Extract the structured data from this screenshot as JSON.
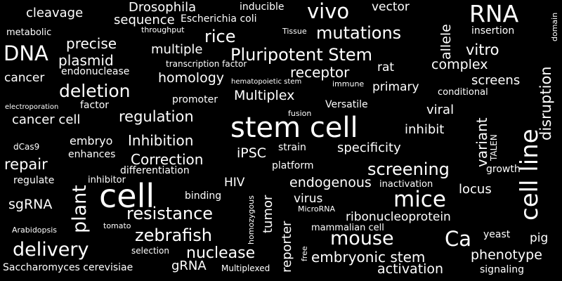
{
  "word_cloud": {
    "background_color": "#000000",
    "text_color": "#ffffff",
    "words": [
      "stem cell",
      "cell",
      "cell line",
      "mice",
      "RNA",
      "Pluripotent Stem",
      "vivo",
      "DNA",
      "mouse",
      "delivery",
      "Ca",
      "deletion",
      "mutations",
      "zebrafish",
      "resistance",
      "screening",
      "plant",
      "disruption",
      "rice",
      "nuclease",
      "regulation",
      "embryonic stem",
      "variant",
      "vitro",
      "receptor",
      "Correction",
      "Inhibition",
      "Multiplex",
      "homology",
      "precise",
      "plasmid",
      "multiple",
      "complex",
      "activation",
      "phenotype",
      "endogenous",
      "allele",
      "cleavage",
      "sequence",
      "Drosophila",
      "specificity",
      "repair",
      "cancer cell",
      "tumor",
      "reporter",
      "cancer",
      "primary",
      "screens",
      "viral",
      "inhibit",
      "iPSC",
      "locus",
      "sgRNA",
      "gRNA",
      "pig",
      "Saccharomyces cerevisiae",
      "ribonucleoprotein",
      "virus",
      "HIV",
      "rat",
      "vector",
      "embryo",
      "mammalian cell",
      "signaling",
      "yeast",
      "growth",
      "insertion",
      "Escherichia coli",
      "inducible",
      "endonuclease",
      "metabolic",
      "transcription factor",
      "promoter",
      "conditional",
      "factor",
      "Versatile",
      "platform",
      "strain",
      "differentiation",
      "enhances",
      "regulate",
      "inhibitor",
      "binding",
      "inactivation",
      "selection",
      "Multiplexed",
      "Arabidopsis",
      "tomato",
      "homozygous",
      "free",
      "MicroRNA",
      "TALEN",
      "dCas9",
      "fusion",
      "immune",
      "hematopoietic stem",
      "electroporation",
      "throughput",
      "Tissue",
      "domain"
    ]
  }
}
